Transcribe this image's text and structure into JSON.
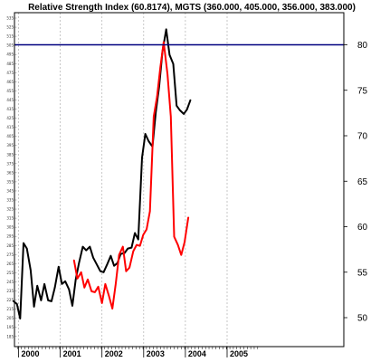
{
  "chart_data": {
    "type": "line",
    "title": "Relative Strength Index (60.8174), MGTS (360.000, 405.000, 356.000, 383.000)",
    "xlabel": "",
    "ylabel": "",
    "x_ticks": [
      "2000",
      "2001",
      "2002",
      "2003",
      "2004",
      "2005"
    ],
    "y_ticks": [
      "50",
      "55",
      "60",
      "65",
      "70",
      "75",
      "80"
    ],
    "ylim": [
      46,
      83
    ],
    "reference_line": {
      "value": 80,
      "color": "#000080"
    },
    "grid": true,
    "legend": "none",
    "series": [
      {
        "color": "#000000",
        "values": [
          [
            1999.88,
            51.8
          ],
          [
            1999.96,
            51.5
          ],
          [
            2000.04,
            49.9
          ],
          [
            2000.12,
            58.2
          ],
          [
            2000.2,
            57.6
          ],
          [
            2000.29,
            55.2
          ],
          [
            2000.37,
            51.2
          ],
          [
            2000.45,
            53.5
          ],
          [
            2000.54,
            51.9
          ],
          [
            2000.62,
            53.7
          ],
          [
            2000.71,
            51.9
          ],
          [
            2000.79,
            51.8
          ],
          [
            2000.87,
            53.3
          ],
          [
            2000.96,
            55.6
          ],
          [
            2001.04,
            53.7
          ],
          [
            2001.12,
            54.0
          ],
          [
            2001.21,
            53.1
          ],
          [
            2001.29,
            51.3
          ],
          [
            2001.37,
            54.2
          ],
          [
            2001.45,
            56.0
          ],
          [
            2001.54,
            57.8
          ],
          [
            2001.62,
            57.4
          ],
          [
            2001.71,
            57.8
          ],
          [
            2001.79,
            56.6
          ],
          [
            2001.87,
            55.9
          ],
          [
            2001.96,
            55.1
          ],
          [
            2002.04,
            55.0
          ],
          [
            2002.12,
            55.8
          ],
          [
            2002.21,
            56.8
          ],
          [
            2002.29,
            55.7
          ],
          [
            2002.37,
            56.0
          ],
          [
            2002.45,
            57.0
          ],
          [
            2002.54,
            57.1
          ],
          [
            2002.62,
            57.6
          ],
          [
            2002.71,
            57.7
          ],
          [
            2002.79,
            59.3
          ],
          [
            2002.87,
            58.6
          ],
          [
            2002.96,
            67.6
          ],
          [
            2003.04,
            70.2
          ],
          [
            2003.12,
            69.4
          ],
          [
            2003.21,
            68.8
          ],
          [
            2003.29,
            72.6
          ],
          [
            2003.37,
            75.4
          ],
          [
            2003.45,
            79.2
          ],
          [
            2003.54,
            81.7
          ],
          [
            2003.62,
            78.9
          ],
          [
            2003.71,
            77.9
          ],
          [
            2003.79,
            73.3
          ],
          [
            2003.87,
            72.8
          ],
          [
            2003.96,
            72.4
          ],
          [
            2004.04,
            72.9
          ],
          [
            2004.12,
            73.9
          ]
        ]
      },
      {
        "color": "#ff0000",
        "values": [
          [
            2001.33,
            56.3
          ],
          [
            2001.41,
            54.3
          ],
          [
            2001.5,
            55.0
          ],
          [
            2001.58,
            53.3
          ],
          [
            2001.66,
            54.2
          ],
          [
            2001.75,
            52.9
          ],
          [
            2001.83,
            52.8
          ],
          [
            2001.91,
            53.4
          ],
          [
            2002.0,
            51.6
          ],
          [
            2002.08,
            53.7
          ],
          [
            2002.16,
            52.5
          ],
          [
            2002.25,
            51.0
          ],
          [
            2002.33,
            53.7
          ],
          [
            2002.41,
            56.9
          ],
          [
            2002.5,
            57.8
          ],
          [
            2002.58,
            55.1
          ],
          [
            2002.66,
            55.5
          ],
          [
            2002.75,
            57.3
          ],
          [
            2002.83,
            58.0
          ],
          [
            2002.91,
            57.9
          ],
          [
            2002.99,
            59.1
          ],
          [
            2003.07,
            59.7
          ],
          [
            2003.15,
            61.7
          ],
          [
            2003.24,
            72.1
          ],
          [
            2003.32,
            74.3
          ],
          [
            2003.4,
            77.5
          ],
          [
            2003.48,
            80.3
          ],
          [
            2003.57,
            76.8
          ],
          [
            2003.65,
            72.1
          ],
          [
            2003.73,
            58.9
          ],
          [
            2003.82,
            58.0
          ],
          [
            2003.9,
            56.9
          ],
          [
            2003.98,
            58.3
          ],
          [
            2004.07,
            61.0
          ]
        ]
      }
    ]
  }
}
